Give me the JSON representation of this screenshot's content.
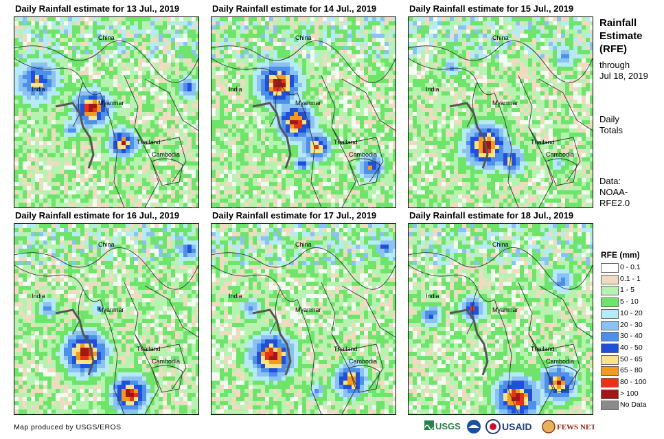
{
  "panels": [
    {
      "title": "Daily Rainfall estimate for 13 Jul., 2019",
      "labels": {
        "china": "China",
        "india": "India",
        "myanmar": "Myanmar",
        "thailand": "Thailand",
        "cambodia": "Cambodia"
      }
    },
    {
      "title": "Daily Rainfall estimate for 14 Jul., 2019",
      "labels": {
        "china": "China",
        "india": "India",
        "myanmar": "Myanmar",
        "thailand": "Thailand",
        "cambodia": "Cambodia"
      }
    },
    {
      "title": "Daily Rainfall estimate for 15 Jul., 2019",
      "labels": {
        "china": "China",
        "india": "India",
        "myanmar": "Myanmar",
        "thailand": "Thailand",
        "cambodia": "Cambodia"
      }
    },
    {
      "title": "Daily Rainfall estimate for 16 Jul., 2019",
      "labels": {
        "china": "China",
        "india": "India",
        "myanmar": "Myanmar",
        "thailand": "Thailand",
        "cambodia": "Cambodia"
      }
    },
    {
      "title": "Daily Rainfall estimate for 17 Jul., 2019",
      "labels": {
        "china": "China",
        "india": "India",
        "myanmar": "Myanmar",
        "thailand": "Thailand",
        "cambodia": "Cambodia"
      }
    },
    {
      "title": "Daily Rainfall estimate for 18 Jul., 2019",
      "labels": {
        "china": "China",
        "india": "India",
        "myanmar": "Myanmar",
        "thailand": "Thailand",
        "cambodia": "Cambodia"
      }
    }
  ],
  "sidebar": {
    "title_lines": [
      "Rainfall",
      "Estimate",
      "(RFE)"
    ],
    "through_lines": [
      "through",
      "Jul 18, 2019"
    ],
    "daily_lines": [
      "Daily",
      "Totals"
    ],
    "data_lines": [
      "Data:",
      "NOAA-",
      "RFE2.0"
    ]
  },
  "legend": {
    "title": "RFE (mm)",
    "items": [
      {
        "label": "0 - 0.1",
        "color": "#ffffff"
      },
      {
        "label": "0.1 - 1",
        "color": "#efdcc0"
      },
      {
        "label": "1 - 5",
        "color": "#b8f2b0"
      },
      {
        "label": "5 - 10",
        "color": "#6ee46a"
      },
      {
        "label": "10 - 20",
        "color": "#b6eaf6"
      },
      {
        "label": "20 - 30",
        "color": "#8cc2f2"
      },
      {
        "label": "30 - 40",
        "color": "#4c90ea"
      },
      {
        "label": "40 - 50",
        "color": "#2050d8"
      },
      {
        "label": "50 - 65",
        "color": "#fae28a"
      },
      {
        "label": "65 - 80",
        "color": "#f49a1c"
      },
      {
        "label": "80 - 100",
        "color": "#e83414"
      },
      {
        "label": "> 100",
        "color": "#a01818"
      },
      {
        "label": "No Data",
        "color": "#8a8a8a"
      }
    ]
  },
  "credit": "Map produced by USGS/EROS",
  "logos": {
    "usgs": "USGS",
    "usaid": "USAID",
    "fewsnet": "FEWS NET"
  }
}
